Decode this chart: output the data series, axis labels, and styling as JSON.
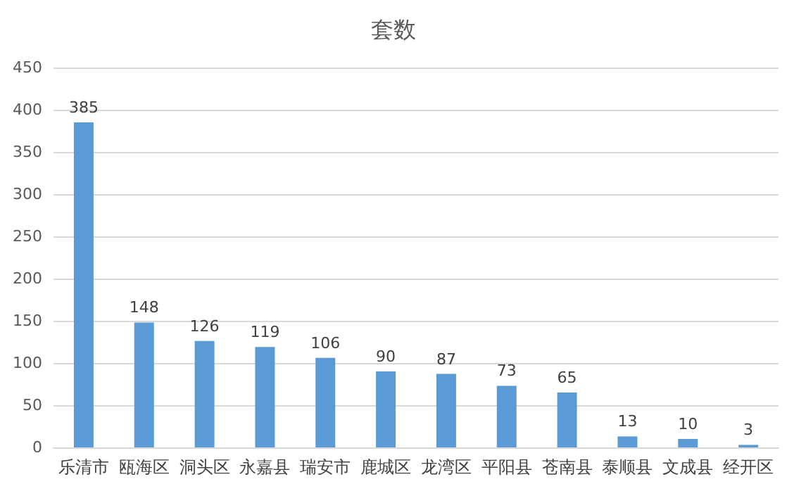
{
  "chart_data": {
    "type": "bar",
    "title": "套数",
    "categories": [
      "乐清市",
      "瓯海区",
      "洞头区",
      "永嘉县",
      "瑞安市",
      "鹿城区",
      "龙湾区",
      "平阳县",
      "苍南县",
      "泰顺县",
      "文成县",
      "经开区"
    ],
    "values": [
      385,
      148,
      126,
      119,
      106,
      90,
      87,
      73,
      65,
      13,
      10,
      3
    ],
    "color": "#5b9bd5",
    "ylim": [
      0,
      450
    ],
    "yticks": [
      0,
      50,
      100,
      150,
      200,
      250,
      300,
      350,
      400,
      450
    ],
    "grid": "y",
    "data_labels": true
  }
}
